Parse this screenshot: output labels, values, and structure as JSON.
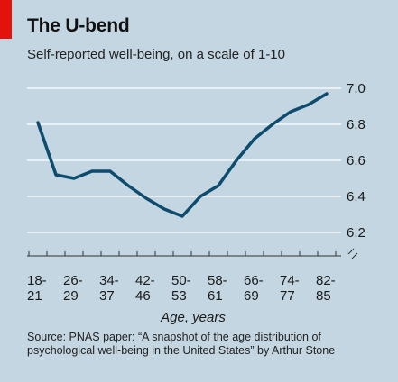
{
  "header": {
    "title": "The U-bend",
    "subtitle": "Self-reported well-being, on a scale of 1-10"
  },
  "source": "Source: PNAS paper: “A snapshot of the age distribution of psychological well-being in the United States” by Arthur Stone",
  "colors": {
    "background": "#c4d6e1",
    "line": "#0e4c6e",
    "gridline": "#ffffff",
    "accent": "#e3120b"
  },
  "chart_data": {
    "type": "line",
    "categories": [
      [
        "18-",
        "21"
      ],
      [
        "26-",
        "29"
      ],
      [
        "34-",
        "37"
      ],
      [
        "42-",
        "46"
      ],
      [
        "50-",
        "53"
      ],
      [
        "58-",
        "61"
      ],
      [
        "66-",
        "69"
      ],
      [
        "74-",
        "77"
      ],
      [
        "82-",
        "85"
      ]
    ],
    "x": [
      1,
      1.5,
      2,
      2.5,
      3,
      3.5,
      4,
      4.5,
      5,
      5.5,
      6,
      6.5,
      7,
      7.5,
      8,
      8.5,
      9
    ],
    "values": [
      6.81,
      6.52,
      6.5,
      6.54,
      6.54,
      6.46,
      6.39,
      6.33,
      6.29,
      6.4,
      6.46,
      6.6,
      6.72,
      6.8,
      6.87,
      6.91,
      6.97
    ],
    "yticks": [
      "6.2",
      "6.4",
      "6.6",
      "6.8",
      "7.0"
    ],
    "ylim": [
      6.2,
      7.0
    ],
    "xlabel": "Age, years",
    "ylabel": "",
    "axis_break": true,
    "grid": true,
    "ytick_side": "right"
  }
}
